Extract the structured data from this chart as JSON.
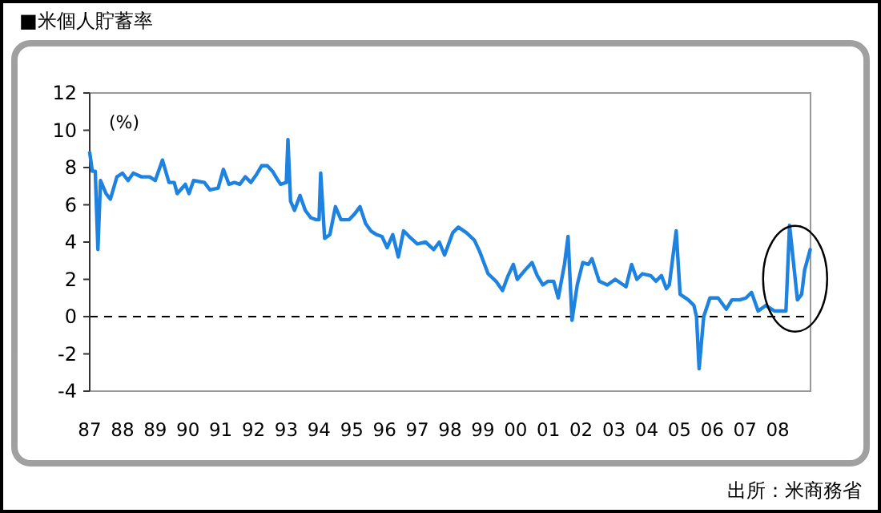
{
  "chart_data": {
    "type": "line",
    "title": "■米個人貯蓄率",
    "ylabel": "(%)",
    "annotations": [
      "出所：米商務省"
    ],
    "series": [
      {
        "color": "#1e82e0",
        "x": [
          1987.0,
          1987.08,
          1987.17,
          1987.25,
          1987.33,
          1987.5,
          1987.63,
          1987.83,
          1988.0,
          1988.17,
          1988.33,
          1988.58,
          1988.83,
          1989.0,
          1989.22,
          1989.42,
          1989.58,
          1989.67,
          1989.92,
          1990.03,
          1990.17,
          1990.5,
          1990.67,
          1990.92,
          1991.08,
          1991.25,
          1991.42,
          1991.58,
          1991.75,
          1991.92,
          1992.08,
          1992.25,
          1992.42,
          1992.58,
          1992.75,
          1992.83,
          1993.0,
          1993.05,
          1993.13,
          1993.25,
          1993.42,
          1993.58,
          1993.75,
          1993.92,
          1994.0,
          1994.05,
          1994.17,
          1994.33,
          1994.5,
          1994.67,
          1994.92,
          1995.08,
          1995.25,
          1995.42,
          1995.58,
          1995.75,
          1995.92,
          1996.08,
          1996.25,
          1996.42,
          1996.58,
          1996.75,
          1997.0,
          1997.25,
          1997.5,
          1997.67,
          1997.83,
          1998.08,
          1998.25,
          1998.5,
          1998.74,
          1998.9,
          1999.16,
          1999.4,
          1999.6,
          1999.77,
          1999.93,
          2000.05,
          2000.29,
          2000.5,
          2000.66,
          2000.83,
          2000.99,
          2001.16,
          2001.3,
          2001.49,
          2001.6,
          2001.72,
          2001.88,
          2002.05,
          2002.22,
          2002.33,
          2002.55,
          2002.8,
          2003.04,
          2003.37,
          2003.54,
          2003.7,
          2003.87,
          2004.12,
          2004.28,
          2004.45,
          2004.6,
          2004.69,
          2004.9,
          2005.02,
          2005.27,
          2005.44,
          2005.52,
          2005.6,
          2005.74,
          2005.93,
          2006.18,
          2006.43,
          2006.6,
          2006.84,
          2007.03,
          2007.2,
          2007.4,
          2007.64,
          2007.9,
          2008.25,
          2008.36,
          2008.6,
          2008.73,
          2008.82,
          2008.99
        ],
        "values": [
          8.8,
          7.8,
          7.8,
          3.6,
          7.3,
          6.6,
          6.3,
          7.5,
          7.7,
          7.3,
          7.7,
          7.5,
          7.5,
          7.3,
          8.4,
          7.2,
          7.2,
          6.6,
          7.1,
          6.6,
          7.3,
          7.2,
          6.8,
          6.9,
          7.9,
          7.1,
          7.2,
          7.1,
          7.5,
          7.2,
          7.6,
          8.1,
          8.1,
          7.8,
          7.3,
          7.1,
          7.2,
          9.5,
          6.2,
          5.7,
          6.5,
          5.7,
          5.3,
          5.2,
          5.2,
          7.7,
          4.2,
          4.4,
          5.9,
          5.2,
          5.2,
          5.5,
          5.9,
          5.0,
          4.6,
          4.4,
          4.3,
          3.7,
          4.4,
          3.2,
          4.6,
          4.3,
          3.9,
          4.0,
          3.6,
          4.0,
          3.3,
          4.5,
          4.8,
          4.5,
          4.1,
          3.5,
          2.3,
          1.9,
          1.4,
          2.2,
          2.8,
          2.0,
          2.5,
          2.9,
          2.2,
          1.7,
          1.9,
          1.9,
          1.0,
          2.8,
          4.3,
          -0.2,
          1.7,
          2.9,
          2.8,
          3.1,
          1.9,
          1.7,
          2.0,
          1.6,
          2.8,
          2.0,
          2.3,
          2.2,
          1.9,
          2.2,
          1.5,
          1.7,
          4.6,
          1.2,
          0.9,
          0.6,
          0.0,
          -2.8,
          0.0,
          1.0,
          1.0,
          0.4,
          0.9,
          0.9,
          1.0,
          1.3,
          0.3,
          0.6,
          0.3,
          0.3,
          4.9,
          0.9,
          1.2,
          2.5,
          3.6
        ]
      }
    ],
    "xlim": [
      1987,
      2009
    ],
    "xticks": [
      {
        "value": 1987,
        "label": "87"
      },
      {
        "value": 1988,
        "label": "88"
      },
      {
        "value": 1989,
        "label": "89"
      },
      {
        "value": 1990,
        "label": "90"
      },
      {
        "value": 1991,
        "label": "91"
      },
      {
        "value": 1992,
        "label": "92"
      },
      {
        "value": 1993,
        "label": "93"
      },
      {
        "value": 1994,
        "label": "94"
      },
      {
        "value": 1995,
        "label": "95"
      },
      {
        "value": 1996,
        "label": "96"
      },
      {
        "value": 1997,
        "label": "97"
      },
      {
        "value": 1998,
        "label": "98"
      },
      {
        "value": 1999,
        "label": "99"
      },
      {
        "value": 2000,
        "label": "00"
      },
      {
        "value": 2001,
        "label": "01"
      },
      {
        "value": 2002,
        "label": "02"
      },
      {
        "value": 2003,
        "label": "03"
      },
      {
        "value": 2004,
        "label": "04"
      },
      {
        "value": 2005,
        "label": "05"
      },
      {
        "value": 2006,
        "label": "06"
      },
      {
        "value": 2007,
        "label": "07"
      },
      {
        "value": 2008,
        "label": "08"
      }
    ],
    "ylim": [
      -4,
      12
    ],
    "yticks": [
      -4,
      -2,
      0,
      2,
      4,
      6,
      8,
      10,
      12
    ],
    "ref_lines": [
      {
        "axis": "y",
        "value": 0,
        "color": "#000000",
        "line_style": "dashed"
      }
    ],
    "grid": false,
    "marker": "none",
    "line_style": "solid"
  }
}
